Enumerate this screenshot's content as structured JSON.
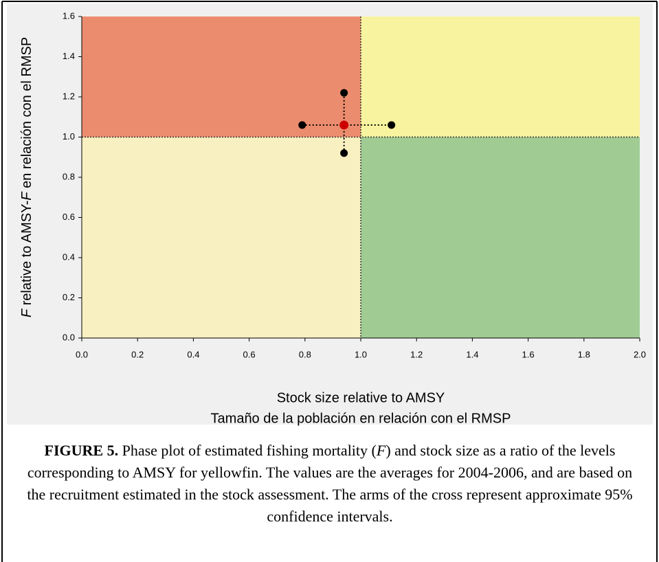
{
  "chart_data": {
    "type": "scatter",
    "xlabel": [
      "Stock size relative to AMSY",
      "Tamaño de la población en relación con el RMSP"
    ],
    "ylabel_parts": [
      "F",
      " relative to AMSY-",
      "F",
      " en relación con el RMSP"
    ],
    "x": [
      0.94
    ],
    "y": [
      1.06
    ],
    "x_interval": [
      0.79,
      1.11
    ],
    "y_interval": [
      0.92,
      1.22
    ],
    "point_color": "#cc0000",
    "interval_color": "#000000",
    "reference_x": 1,
    "reference_y": 1,
    "quadrant_colors": {
      "upper_left": "#ec8c6e",
      "upper_right": "#f7f39e",
      "lower_left": "#f8f0c0",
      "lower_right": "#a0cc94"
    },
    "xlim": [
      0,
      2
    ],
    "ylim": [
      0,
      1.6
    ],
    "xticks": [
      {
        "value": 0,
        "label": "0.0"
      },
      0.2,
      0.4,
      0.6,
      0.8,
      {
        "value": 1,
        "label": "1.0"
      },
      1.2,
      1.4,
      1.6,
      1.8,
      {
        "value": 2,
        "label": "2.0"
      }
    ],
    "yticks": [
      {
        "value": 0,
        "label": "0.0"
      },
      0.2,
      0.4,
      0.6,
      0.8,
      {
        "value": 1,
        "label": "1.0"
      },
      1.2,
      1.4,
      1.6
    ]
  },
  "caption": {
    "label": "FIGURE 5.",
    "parts": [
      "  Phase plot of estimated fishing mortality (",
      "F",
      ") and stock size as a ratio of the levels corresponding to AMSY for yellowfin. The values are the averages for 2004-2006, and are based on the recruitment estimated in the stock assessment.  The arms of the cross represent approximate 95% confidence intervals."
    ]
  }
}
